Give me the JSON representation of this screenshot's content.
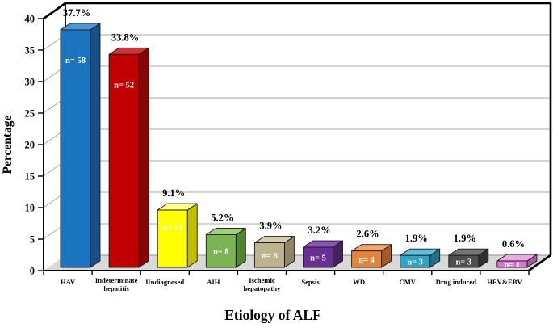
{
  "chart_data": {
    "type": "bar",
    "projection": "3d",
    "title": "",
    "xlabel": "Etiology of ALF",
    "ylabel": "Percentage",
    "ylim": [
      0,
      40
    ],
    "ytick_step": 5,
    "yticks": [
      "0",
      "5",
      "10",
      "15",
      "20",
      "25",
      "30",
      "35",
      "40"
    ],
    "grid": true,
    "legend": "none",
    "categories": [
      "HAV",
      "Indeterminate hepatitis",
      "Undiagnosed",
      "AIH",
      "Ischemic hepatopathy",
      "Sepsis",
      "WD",
      "CMV",
      "Drug induced",
      "HEV&EBV"
    ],
    "category_label_lines": [
      [
        "HAV"
      ],
      [
        "Indeterminate",
        "hepatitis"
      ],
      [
        "Undiagnosed"
      ],
      [
        "AIH"
      ],
      [
        "Ischemic",
        "hepatopathy"
      ],
      [
        "Sepsis"
      ],
      [
        "WD"
      ],
      [
        "CMV"
      ],
      [
        "Drug induced"
      ],
      [
        "HEV&EBV"
      ]
    ],
    "values": [
      37.7,
      33.8,
      9.1,
      5.2,
      3.9,
      3.2,
      2.6,
      1.9,
      1.9,
      0.6
    ],
    "value_labels": [
      "37.7%",
      "33.8%",
      "9.1%",
      "5.2%",
      "3.9%",
      "3.2%",
      "2.6%",
      "1.9%",
      "1.9%",
      "0.6%"
    ],
    "counts": [
      58,
      52,
      14,
      8,
      6,
      5,
      4,
      3,
      3,
      1
    ],
    "count_labels": [
      "n= 58",
      "n= 52",
      "n= 14",
      "n= 8",
      "n= 6",
      "n= 5",
      "n= 4",
      "n= 3",
      "n= 3",
      "n= 1"
    ],
    "bar_colors": [
      {
        "name": "blue",
        "front": "#1B74C0",
        "top": "#4E96D6",
        "side": "#14518A"
      },
      {
        "name": "red",
        "front": "#C00000",
        "top": "#D23232",
        "side": "#8A0404"
      },
      {
        "name": "yellow",
        "front": "#FFFF00",
        "top": "#FFFF85",
        "side": "#BFBF00"
      },
      {
        "name": "green",
        "front": "#7CB454",
        "top": "#A3CD7E",
        "side": "#538230"
      },
      {
        "name": "tan",
        "front": "#BEB38F",
        "top": "#D5CBB1",
        "side": "#8F8569"
      },
      {
        "name": "purple",
        "front": "#692E92",
        "top": "#8A55B3",
        "side": "#452063"
      },
      {
        "name": "orange",
        "front": "#E6833B",
        "top": "#F0A768",
        "side": "#A85A24"
      },
      {
        "name": "teal",
        "front": "#30A3C2",
        "top": "#62C0D8",
        "side": "#1E7187"
      },
      {
        "name": "gray",
        "front": "#4E4E4E",
        "top": "#757575",
        "side": "#303030"
      },
      {
        "name": "pink",
        "front": "#DB79D0",
        "top": "#ECA9E4",
        "side": "#A9559F"
      }
    ],
    "count_label_color": "#FFFFFF",
    "value_label_color": "#000000",
    "axis_color": "#000000",
    "gridline_color": "#ABABAB",
    "floor_color": "#D9D9D9",
    "background_color": "#FFFFFF"
  }
}
